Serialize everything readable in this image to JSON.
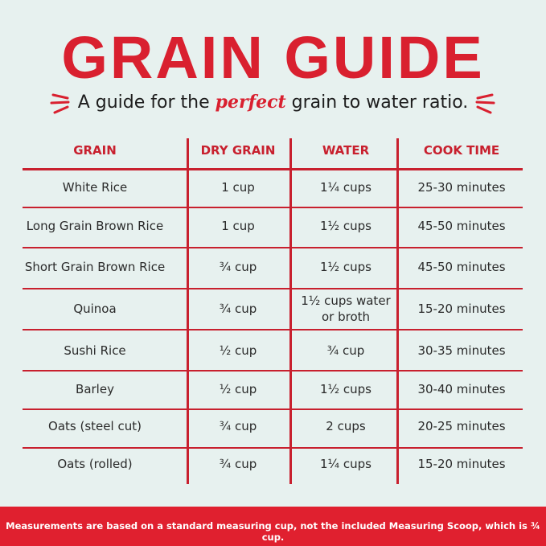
{
  "header": {
    "title": "GRAIN GUIDE",
    "subtitle": [
      "A guide for the ",
      "perfect",
      " grain to water ratio."
    ]
  },
  "table": {
    "columns": [
      "GRAIN",
      "DRY GRAIN",
      "WATER",
      "COOK TIME"
    ],
    "rows": [
      [
        "White Rice",
        "1 cup",
        "1¼ cups",
        "25-30 minutes"
      ],
      [
        "Long Grain Brown Rice",
        "1 cup",
        "1½ cups",
        "45-50 minutes"
      ],
      [
        "Short Grain Brown Rice",
        "¾ cup",
        "1½ cups",
        "45-50 minutes"
      ],
      [
        "Quinoa",
        "¾ cup",
        "1½ cups water or broth",
        "15-20 minutes"
      ],
      [
        "Sushi Rice",
        "½ cup",
        "¾ cup",
        "30-35 minutes"
      ],
      [
        "Barley",
        "½ cup",
        "1½ cups",
        "30-40 minutes"
      ],
      [
        "Oats (steel cut)",
        "¾ cup",
        "2 cups",
        "20-25 minutes"
      ],
      [
        "Oats (rolled)",
        "¾ cup",
        "1¼ cups",
        "15-20 minutes"
      ]
    ]
  },
  "footer": {
    "note": "Measurements are based on a standard measuring cup, not the included Measuring Scoop, which is ¾ cup."
  }
}
